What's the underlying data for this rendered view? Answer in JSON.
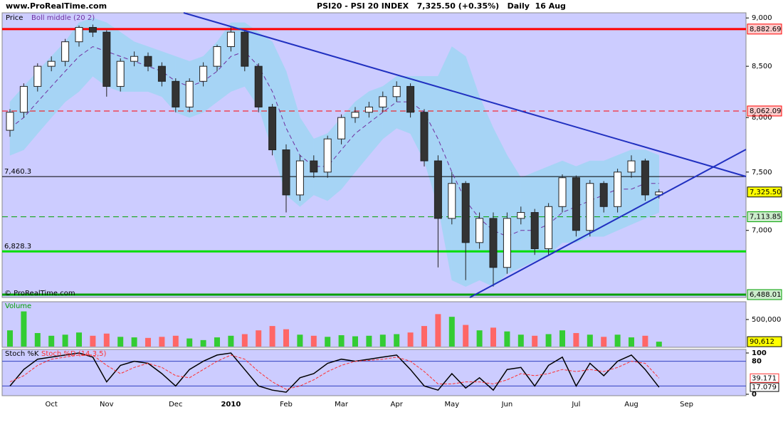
{
  "header": {
    "site": "www.ProRealTime.com",
    "title": "PSI20 - PSI 20 INDEX   7,325.50 (+0.35%)   Daily  16 Aug"
  },
  "chart_data": {
    "type": "candlestick",
    "legend": "Price",
    "watermark": "© ProRealTime.com",
    "log": true,
    "up_color": "#ffffff",
    "down_color": "#333333",
    "categories": [
      null,
      null,
      null,
      "Oct",
      null,
      null,
      null,
      "Nov",
      null,
      null,
      null,
      null,
      "Dec",
      null,
      null,
      null,
      "2010",
      null,
      null,
      null,
      "Feb",
      null,
      null,
      null,
      "Mar",
      null,
      null,
      null,
      "Apr",
      null,
      null,
      null,
      "May",
      null,
      null,
      null,
      "Jun",
      null,
      null,
      null,
      null,
      "Jul",
      null,
      null,
      null,
      "Aug",
      null,
      null,
      null,
      "Sep",
      null,
      null
    ],
    "open": [
      7880,
      8050,
      8300,
      8500,
      8550,
      8750,
      8900,
      8850,
      8300,
      8550,
      8600,
      8500,
      8350,
      8100,
      8350,
      8500,
      8700,
      8850,
      8500,
      8100,
      7700,
      7300,
      7600,
      7500,
      7800,
      8000,
      8050,
      8100,
      8200,
      8300,
      8050,
      7600,
      7100,
      7400,
      6900,
      7100,
      6700,
      7100,
      7150,
      6850,
      7200,
      7450,
      7000,
      7400,
      7200,
      7500,
      7600,
      7300,
      null,
      null,
      null,
      null
    ],
    "high": [
      8080,
      8330,
      8530,
      8600,
      8780,
      8920,
      8930,
      8870,
      8580,
      8650,
      8640,
      8540,
      8380,
      8380,
      8540,
      8720,
      8900,
      8870,
      8530,
      8130,
      7750,
      7650,
      7650,
      7830,
      8030,
      8100,
      8150,
      8250,
      8350,
      8330,
      8080,
      7650,
      7500,
      7420,
      7150,
      7150,
      7150,
      7200,
      7180,
      7230,
      7480,
      7470,
      7430,
      7420,
      7530,
      7650,
      7620,
      7350,
      null,
      null,
      null,
      null
    ],
    "low": [
      7820,
      8000,
      8250,
      8450,
      8500,
      8700,
      8800,
      8200,
      8250,
      8500,
      8450,
      8300,
      8050,
      8050,
      8300,
      8450,
      8650,
      8450,
      8050,
      7650,
      7150,
      7250,
      7450,
      7450,
      7750,
      7950,
      8000,
      8050,
      8150,
      8000,
      7550,
      6700,
      7050,
      6600,
      6850,
      6550,
      6650,
      7050,
      6800,
      6800,
      7150,
      6950,
      6950,
      7150,
      7150,
      7450,
      7250,
      7270,
      null,
      null,
      null,
      null
    ],
    "close": [
      8050,
      8300,
      8500,
      8550,
      8750,
      8900,
      8850,
      8300,
      8550,
      8600,
      8500,
      8350,
      8100,
      8350,
      8500,
      8700,
      8850,
      8500,
      8100,
      7700,
      7300,
      7600,
      7500,
      7800,
      8000,
      8050,
      8100,
      8200,
      8300,
      8050,
      7600,
      7100,
      7400,
      6900,
      7100,
      6700,
      7100,
      7150,
      6850,
      7200,
      7450,
      7000,
      7400,
      7200,
      7500,
      7600,
      7300,
      7325.5,
      null,
      null,
      null,
      null
    ],
    "last_label": "7,325.50",
    "bollinger": {
      "name": "Boll middle (20 2)",
      "color": "#7030a0",
      "band_color": "#a6d4f5",
      "middle": [
        7900,
        8000,
        8150,
        8300,
        8450,
        8600,
        8700,
        8650,
        8600,
        8550,
        8500,
        8450,
        8350,
        8300,
        8350,
        8450,
        8600,
        8650,
        8500,
        8250,
        7900,
        7650,
        7550,
        7550,
        7700,
        7850,
        7950,
        8050,
        8150,
        8150,
        8050,
        7800,
        7500,
        7250,
        7100,
        7000,
        6950,
        7000,
        7000,
        7050,
        7150,
        7200,
        7250,
        7300,
        7350,
        7350,
        7400,
        7400,
        null,
        null,
        null,
        null
      ],
      "upper": [
        8150,
        8300,
        8450,
        8600,
        8750,
        8950,
        9000,
        8950,
        8850,
        8750,
        8700,
        8650,
        8600,
        8550,
        8600,
        8750,
        8950,
        8950,
        8850,
        8750,
        8450,
        8000,
        7800,
        7850,
        8000,
        8150,
        8250,
        8300,
        8400,
        8400,
        8400,
        8400,
        8700,
        8600,
        8200,
        7900,
        7650,
        7450,
        7500,
        7550,
        7600,
        7550,
        7600,
        7600,
        7650,
        7700,
        7700,
        7650,
        null,
        null,
        null,
        null
      ],
      "lower": [
        7650,
        7700,
        7850,
        8000,
        8150,
        8250,
        8400,
        8300,
        8250,
        8250,
        8250,
        8200,
        8050,
        8000,
        8050,
        8150,
        8250,
        8300,
        8100,
        7700,
        7300,
        7200,
        7300,
        7250,
        7350,
        7500,
        7650,
        7800,
        7900,
        7850,
        7600,
        7200,
        6600,
        6550,
        6600,
        6550,
        6650,
        6700,
        6750,
        6800,
        6900,
        6900,
        6950,
        6950,
        7000,
        7050,
        7100,
        7150,
        null,
        null,
        null,
        null
      ]
    },
    "ylim": [
      6466,
      9055
    ],
    "yticks": [
      {
        "value": 7000,
        "label": "7,000"
      },
      {
        "value": 7500,
        "label": "7,500"
      },
      {
        "value": 8000,
        "label": "8,000"
      },
      {
        "value": 8500,
        "label": "8,500"
      },
      {
        "value": 9000,
        "label": "9,000"
      }
    ],
    "levels": [
      {
        "value": 8882.69,
        "label": "8,882.69",
        "color": "#ff0000",
        "style": "thick",
        "side": "right"
      },
      {
        "value": 8062.09,
        "label": "8,062.09",
        "color": "#ff0000",
        "style": "dashed",
        "side": "right"
      },
      {
        "value": 7460.3,
        "label": "7,460.3",
        "color": "#000000",
        "style": "thin",
        "side": "left"
      },
      {
        "value": 7113.85,
        "label": "7,113.85",
        "color": "#00a000",
        "style": "dashed",
        "side": "right"
      },
      {
        "value": 6828.3,
        "label": "6,828.3",
        "color": "#00dd00",
        "style": "thick",
        "side": "left"
      },
      {
        "value": 6488.01,
        "label": "6,488.01",
        "color": "#00a000",
        "style": "thick",
        "side": "right"
      }
    ],
    "volume": {
      "name": "Volume",
      "color": "#00a000",
      "up_color": "#33cc33",
      "down_color": "#ff6666",
      "values": [
        300000,
        650000,
        250000,
        200000,
        220000,
        260000,
        200000,
        240000,
        180000,
        170000,
        160000,
        180000,
        200000,
        150000,
        120000,
        170000,
        200000,
        230000,
        300000,
        380000,
        320000,
        220000,
        200000,
        180000,
        210000,
        190000,
        200000,
        220000,
        230000,
        260000,
        380000,
        600000,
        550000,
        400000,
        300000,
        350000,
        280000,
        220000,
        200000,
        230000,
        300000,
        250000,
        220000,
        180000,
        220000,
        170000,
        200000,
        90612,
        null,
        null,
        null,
        null
      ],
      "last_label": "90,612",
      "ylim": [
        0,
        815000
      ],
      "yticks": [
        {
          "value": 500000,
          "label": "500,000"
        }
      ]
    },
    "stochastic": {
      "ylim": [
        0,
        100
      ],
      "yticks": [
        0,
        20,
        80,
        100
      ],
      "series": [
        {
          "name": "Stoch %K",
          "color": "#000000",
          "values": [
            20,
            60,
            85,
            90,
            95,
            100,
            90,
            30,
            70,
            80,
            75,
            50,
            20,
            60,
            80,
            95,
            100,
            60,
            20,
            10,
            5,
            40,
            50,
            75,
            85,
            80,
            85,
            90,
            95,
            60,
            20,
            10,
            50,
            15,
            40,
            10,
            60,
            65,
            20,
            70,
            90,
            20,
            75,
            45,
            80,
            95,
            60,
            17.079,
            null,
            null,
            null,
            null
          ]
        },
        {
          "name": "Stoch %D (14,3,5)",
          "color": "#ff3030",
          "values": [
            30,
            45,
            70,
            85,
            90,
            95,
            95,
            70,
            50,
            65,
            75,
            65,
            45,
            40,
            60,
            80,
            95,
            85,
            55,
            30,
            12,
            20,
            35,
            55,
            70,
            80,
            82,
            85,
            90,
            80,
            55,
            25,
            25,
            30,
            30,
            25,
            35,
            50,
            45,
            50,
            60,
            55,
            60,
            55,
            65,
            80,
            75,
            39.171,
            null,
            null,
            null,
            null
          ]
        }
      ]
    }
  }
}
